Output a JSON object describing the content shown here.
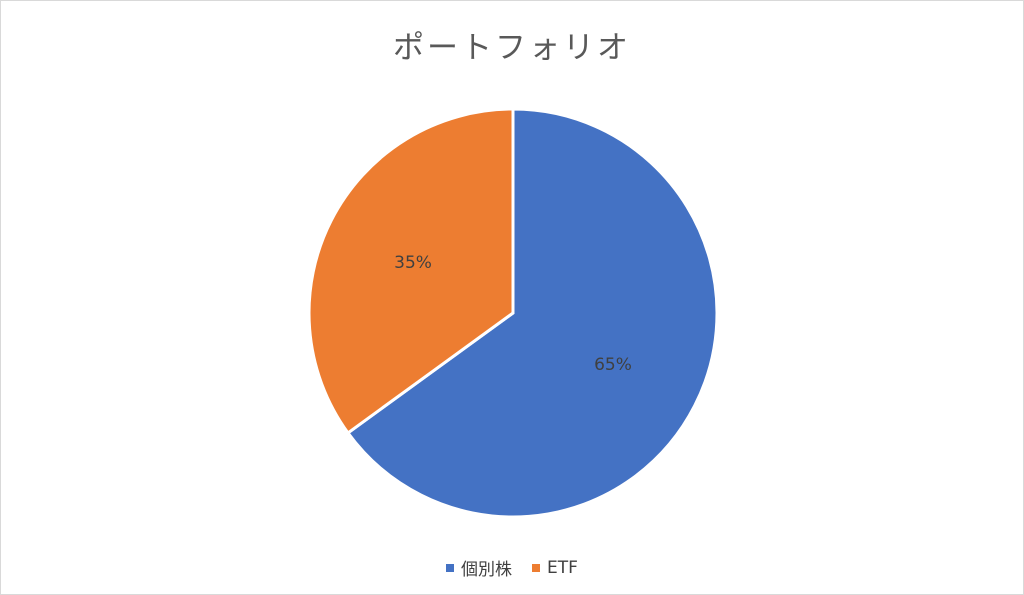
{
  "chart_data": {
    "type": "pie",
    "title": "ポートフォリオ",
    "categories": [
      "個別株",
      "ETF"
    ],
    "values": [
      65,
      35
    ],
    "data_labels": [
      "65%",
      "35%"
    ],
    "colors": [
      "#4472c4",
      "#ed7d31"
    ],
    "legend_position": "bottom"
  }
}
